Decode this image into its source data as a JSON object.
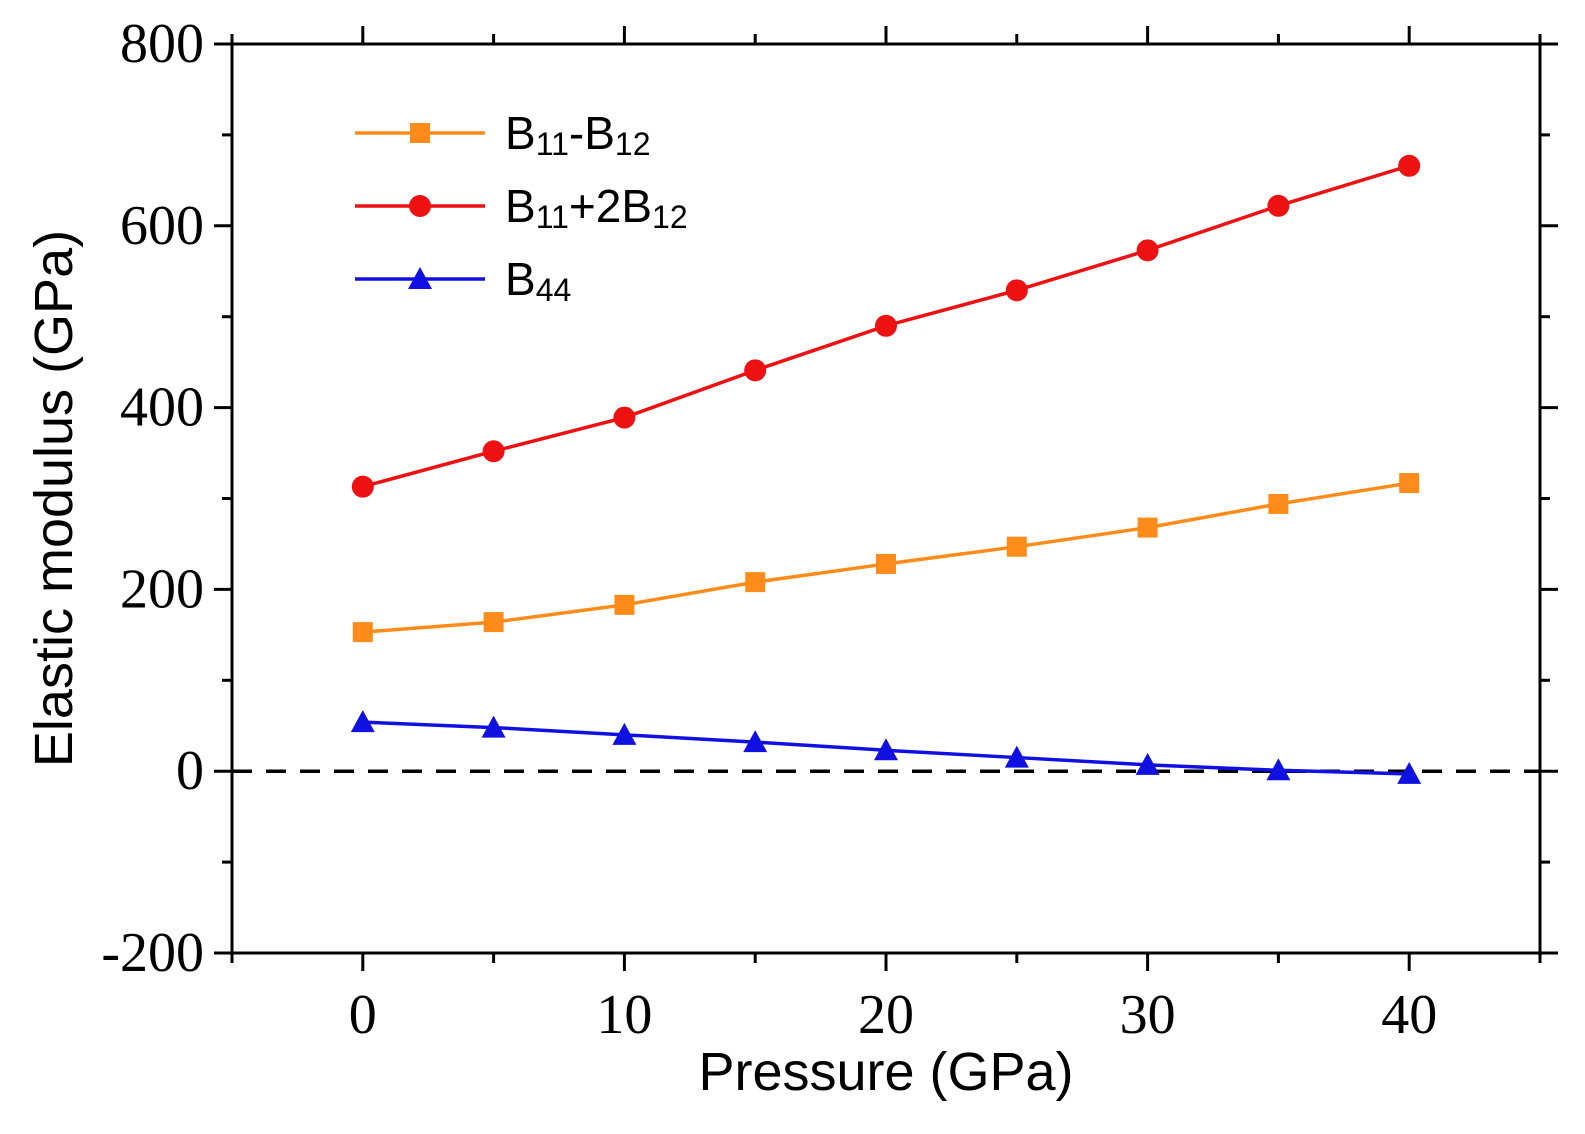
{
  "chart_data": {
    "type": "line",
    "xlabel": "Pressure (GPa)",
    "ylabel": "Elastic modulus (GPa)",
    "xlim": [
      -5,
      45
    ],
    "ylim": [
      -200,
      800
    ],
    "x_ticks": [
      0,
      10,
      20,
      30,
      40
    ],
    "y_ticks": [
      -200,
      0,
      200,
      400,
      600,
      800
    ],
    "reference_line": {
      "y": 0,
      "style": "dashed"
    },
    "legend_position": "top-left",
    "x": [
      0,
      5,
      10,
      15,
      20,
      25,
      30,
      35,
      40
    ],
    "series": [
      {
        "name": "B11-B12",
        "base": "B",
        "sub1": "11",
        "op": "-",
        "base2": "B",
        "sub2": "12",
        "color": "#ff8c1a",
        "marker": "square",
        "values": [
          153,
          164,
          183,
          208,
          228,
          247,
          268,
          294,
          317
        ]
      },
      {
        "name": "B11+2B12",
        "base": "B",
        "sub1": "11",
        "op": "+2",
        "base2": "B",
        "sub2": "12",
        "color": "#ee1111",
        "marker": "circle",
        "values": [
          313,
          352,
          389,
          441,
          490,
          529,
          573,
          622,
          666
        ]
      },
      {
        "name": "B44",
        "base": "B",
        "sub1": "44",
        "op": "",
        "base2": "",
        "sub2": "",
        "color": "#1010e0",
        "marker": "triangle",
        "values": [
          54,
          48,
          40,
          32,
          23,
          15,
          7,
          1,
          -3
        ]
      }
    ]
  }
}
